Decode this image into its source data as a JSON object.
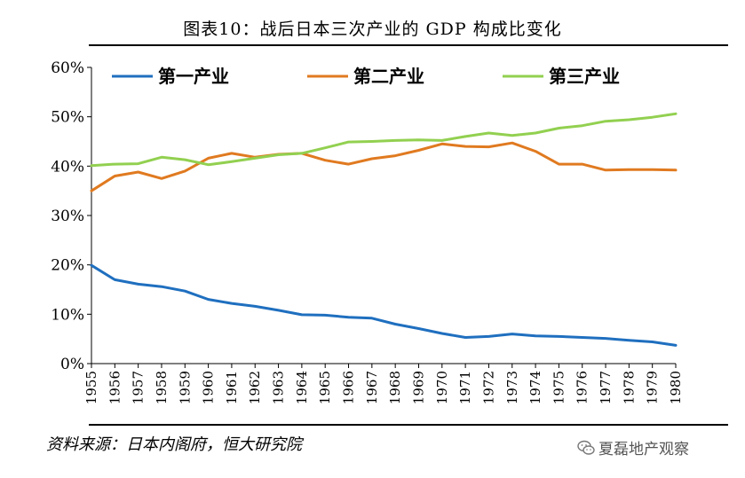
{
  "title": "图表10：战后日本三次产业的 GDP 构成比变化",
  "source": "资料来源：日本内阁府，恒大研究院",
  "watermark": "夏磊地产观察",
  "chart_data": {
    "type": "line",
    "title": "图表10：战后日本三次产业的 GDP 构成比变化",
    "xlabel": "",
    "ylabel": "",
    "ylim": [
      0,
      60
    ],
    "yticks": [
      0,
      10,
      20,
      30,
      40,
      50,
      60
    ],
    "ytick_labels": [
      "0%",
      "10%",
      "20%",
      "30%",
      "40%",
      "50%",
      "60%"
    ],
    "categories": [
      "1955",
      "1956",
      "1957",
      "1958",
      "1959",
      "1960",
      "1961",
      "1962",
      "1963",
      "1964",
      "1965",
      "1966",
      "1967",
      "1968",
      "1969",
      "1970",
      "1971",
      "1972",
      "1973",
      "1974",
      "1975",
      "1976",
      "1977",
      "1978",
      "1979",
      "1980"
    ],
    "legend_position": "top",
    "series": [
      {
        "name": "第一产业",
        "color": "#1f6fbf",
        "values": [
          19.9,
          17.0,
          16.1,
          15.6,
          14.7,
          13.0,
          12.2,
          11.6,
          10.8,
          9.9,
          9.8,
          9.4,
          9.2,
          8.0,
          7.1,
          6.1,
          5.3,
          5.5,
          6.0,
          5.6,
          5.5,
          5.3,
          5.1,
          4.7,
          4.4,
          3.7
        ]
      },
      {
        "name": "第二产业",
        "color": "#e07a20",
        "values": [
          35.0,
          38.0,
          38.8,
          37.5,
          39.0,
          41.6,
          42.6,
          41.8,
          42.4,
          42.6,
          41.2,
          40.4,
          41.5,
          42.1,
          43.2,
          44.5,
          44.0,
          43.9,
          44.7,
          43.0,
          40.4,
          40.4,
          39.2,
          39.3,
          39.3,
          39.2
        ]
      },
      {
        "name": "第三产业",
        "color": "#92d050",
        "values": [
          40.1,
          40.4,
          40.5,
          41.8,
          41.3,
          40.3,
          40.9,
          41.6,
          42.3,
          42.6,
          43.7,
          44.9,
          45.0,
          45.2,
          45.3,
          45.2,
          46.0,
          46.7,
          46.2,
          46.7,
          47.7,
          48.2,
          49.1,
          49.4,
          49.9,
          50.6
        ]
      }
    ]
  }
}
